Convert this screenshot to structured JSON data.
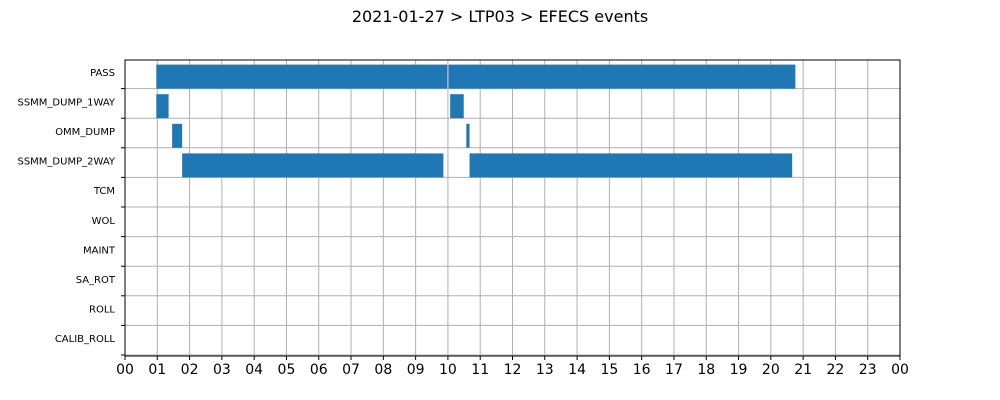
{
  "chart_data": {
    "type": "bar",
    "orientation": "horizontal-timeline",
    "title": "2021-01-27 > LTP03 > EFECS events",
    "xlabel": "",
    "ylabel": "",
    "x_unit": "hour of day",
    "xlim": [
      0,
      24
    ],
    "x_ticks": [
      "00",
      "01",
      "02",
      "03",
      "04",
      "05",
      "06",
      "07",
      "08",
      "09",
      "10",
      "11",
      "12",
      "13",
      "14",
      "15",
      "16",
      "17",
      "18",
      "19",
      "20",
      "21",
      "22",
      "23",
      "00"
    ],
    "categories": [
      "PASS",
      "SSMM_DUMP_1WAY",
      "OMM_DUMP",
      "SSMM_DUMP_2WAY",
      "TCM",
      "WOL",
      "MAINT",
      "SA_ROT",
      "ROLL",
      "CALIB_ROLL"
    ],
    "grid": true,
    "bar_color": "#1f77b4",
    "events": [
      {
        "category": "PASS",
        "start": 0.97,
        "end": 9.98
      },
      {
        "category": "PASS",
        "start": 10.02,
        "end": 20.76
      },
      {
        "category": "SSMM_DUMP_1WAY",
        "start": 0.97,
        "end": 1.35
      },
      {
        "category": "SSMM_DUMP_1WAY",
        "start": 10.07,
        "end": 10.49
      },
      {
        "category": "OMM_DUMP",
        "start": 1.46,
        "end": 1.77
      },
      {
        "category": "OMM_DUMP",
        "start": 10.57,
        "end": 10.67
      },
      {
        "category": "SSMM_DUMP_2WAY",
        "start": 1.77,
        "end": 9.86
      },
      {
        "category": "SSMM_DUMP_2WAY",
        "start": 10.67,
        "end": 20.66
      }
    ]
  }
}
